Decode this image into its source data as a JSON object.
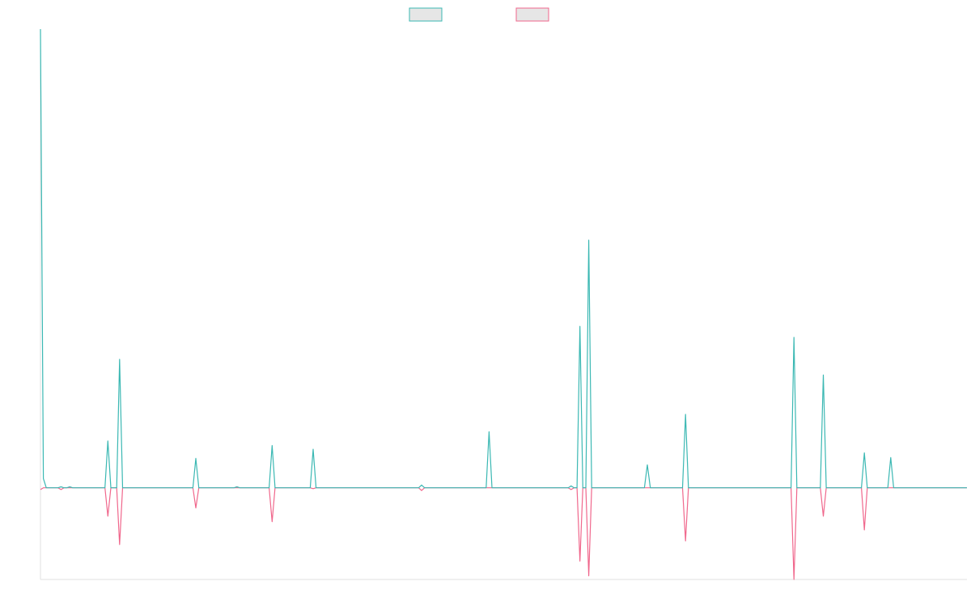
{
  "chart_data": {
    "type": "line",
    "title": "",
    "xlabel": "",
    "ylabel": "",
    "grid": false,
    "legend_position": "top-center",
    "x_range": [
      0,
      158
    ],
    "ylim": [
      -100,
      500
    ],
    "series": [
      {
        "name": "",
        "color": "#3bb8b3",
        "fill": "#e6e6e6",
        "points": [
          [
            0,
            500
          ],
          [
            0.5,
            10
          ],
          [
            1,
            0
          ],
          [
            3,
            0
          ],
          [
            3.5,
            1
          ],
          [
            4,
            0
          ],
          [
            4.5,
            0
          ],
          [
            5,
            1
          ],
          [
            5.5,
            0
          ],
          [
            11,
            0
          ],
          [
            11.5,
            51
          ],
          [
            12,
            0
          ],
          [
            13,
            0
          ],
          [
            13.5,
            140
          ],
          [
            14,
            0
          ],
          [
            26,
            0
          ],
          [
            26.5,
            32
          ],
          [
            27,
            0
          ],
          [
            33,
            0
          ],
          [
            33.5,
            1
          ],
          [
            34,
            0
          ],
          [
            39,
            0
          ],
          [
            39.5,
            46
          ],
          [
            40,
            0
          ],
          [
            46,
            0
          ],
          [
            46.5,
            42
          ],
          [
            47,
            0
          ],
          [
            64.5,
            0
          ],
          [
            65,
            3
          ],
          [
            65.5,
            0
          ],
          [
            76,
            0
          ],
          [
            76.5,
            61
          ],
          [
            77,
            0
          ],
          [
            90,
            0
          ],
          [
            90.5,
            2
          ],
          [
            91,
            0
          ],
          [
            91.5,
            0
          ],
          [
            92,
            176
          ],
          [
            92.5,
            0
          ],
          [
            93,
            0
          ],
          [
            93.5,
            270
          ],
          [
            94,
            0
          ],
          [
            103,
            0
          ],
          [
            103.5,
            25
          ],
          [
            104,
            0
          ],
          [
            109.5,
            0
          ],
          [
            110,
            80
          ],
          [
            110.5,
            0
          ],
          [
            128,
            0
          ],
          [
            128.5,
            164
          ],
          [
            129,
            0
          ],
          [
            133,
            0
          ],
          [
            133.5,
            123
          ],
          [
            134,
            0
          ],
          [
            140,
            0
          ],
          [
            140.5,
            38
          ],
          [
            141,
            0
          ],
          [
            144.5,
            0
          ],
          [
            145,
            33
          ],
          [
            145.5,
            0
          ],
          [
            158,
            0
          ]
        ]
      },
      {
        "name": "",
        "color": "#f0678c",
        "fill": "#e6e6e6",
        "points": [
          [
            0,
            -2
          ],
          [
            0.5,
            0
          ],
          [
            3,
            0
          ],
          [
            3.5,
            -2
          ],
          [
            4,
            0
          ],
          [
            11,
            0
          ],
          [
            11.5,
            -31
          ],
          [
            12,
            0
          ],
          [
            13,
            0
          ],
          [
            13.5,
            -62
          ],
          [
            14,
            0
          ],
          [
            26,
            0
          ],
          [
            26.5,
            -22
          ],
          [
            27,
            0
          ],
          [
            39,
            0
          ],
          [
            39.5,
            -37
          ],
          [
            40,
            0
          ],
          [
            46,
            0
          ],
          [
            46.5,
            -1
          ],
          [
            47,
            0
          ],
          [
            64.5,
            0
          ],
          [
            65,
            -3
          ],
          [
            65.5,
            0
          ],
          [
            90,
            0
          ],
          [
            90.5,
            -2
          ],
          [
            91,
            0
          ],
          [
            91.5,
            0
          ],
          [
            92,
            -80
          ],
          [
            92.5,
            0
          ],
          [
            93,
            0
          ],
          [
            93.5,
            -96
          ],
          [
            94,
            0
          ],
          [
            109.5,
            0
          ],
          [
            110,
            -58
          ],
          [
            110.5,
            0
          ],
          [
            128,
            0
          ],
          [
            128.5,
            -100
          ],
          [
            129,
            0
          ],
          [
            133,
            0
          ],
          [
            133.5,
            -31
          ],
          [
            134,
            0
          ],
          [
            140,
            0
          ],
          [
            140.5,
            -46
          ],
          [
            141,
            0
          ],
          [
            158,
            0
          ]
        ]
      }
    ]
  }
}
